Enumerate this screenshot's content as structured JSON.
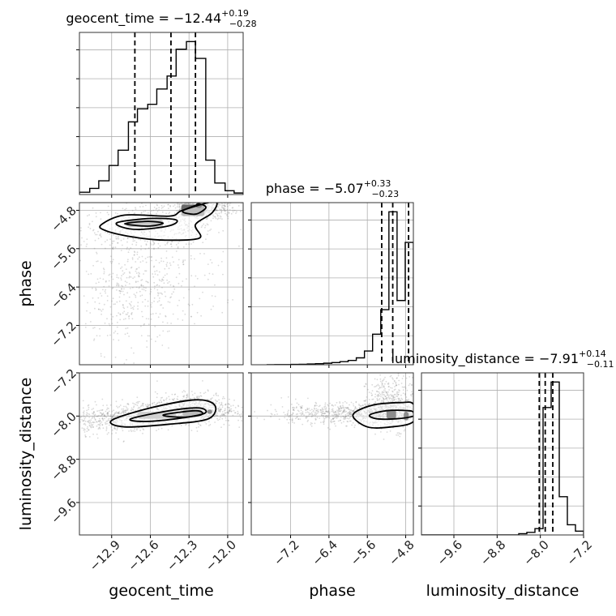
{
  "chart_data": {
    "type": "corner",
    "parameters": [
      "geocent_time",
      "phase",
      "luminosity_distance"
    ],
    "grid": true,
    "histograms": [
      {
        "parameter": "geocent_time",
        "title_prefix": "geocent_time = ",
        "median": "−12.44",
        "upper": "+0.19",
        "lower": "−0.28",
        "quantiles": [
          -12.72,
          -12.44,
          -12.25
        ],
        "bin_edges": [
          -13.15,
          -13.07,
          -13.0,
          -12.92,
          -12.85,
          -12.77,
          -12.7,
          -12.62,
          -12.55,
          -12.47,
          -12.4,
          -12.32,
          -12.25,
          -12.17,
          -12.1,
          -12.02,
          -11.95,
          -11.88
        ],
        "counts": [
          3,
          8,
          18,
          38,
          58,
          95,
          112,
          118,
          138,
          155,
          190,
          200,
          178,
          45,
          15,
          5,
          2
        ]
      },
      {
        "parameter": "phase",
        "title_prefix": "phase = ",
        "median": "−5.07",
        "upper": "+0.33",
        "lower": "−0.23",
        "quantiles": [
          -5.3,
          -5.07,
          -4.74
        ],
        "bin_edges": [
          -7.7,
          -7.53,
          -7.36,
          -7.19,
          -7.02,
          -6.85,
          -6.68,
          -6.51,
          -6.34,
          -6.17,
          -6.0,
          -5.83,
          -5.66,
          -5.49,
          -5.32,
          -5.15,
          -4.98,
          -4.81,
          -4.64
        ],
        "counts": [
          0,
          1,
          1,
          2,
          3,
          5,
          7,
          10,
          14,
          20,
          28,
          45,
          90,
          200,
          360,
          1000,
          420,
          800
        ]
      },
      {
        "parameter": "luminosity_distance",
        "title_prefix": "luminosity_distance = ",
        "median": "−7.91",
        "upper": "+0.14",
        "lower": "−0.11",
        "quantiles": [
          -8.02,
          -7.91,
          -7.77
        ],
        "bin_edges": [
          -10.2,
          -10.05,
          -9.9,
          -9.75,
          -9.6,
          -9.45,
          -9.3,
          -9.15,
          -9.0,
          -8.85,
          -8.7,
          -8.55,
          -8.4,
          -8.25,
          -8.1,
          -7.95,
          -7.8,
          -7.65,
          -7.5,
          -7.35,
          -7.2
        ],
        "counts": [
          0,
          0,
          0,
          0,
          0,
          0,
          0,
          0,
          0,
          0,
          0,
          0,
          1,
          2,
          5,
          100,
          120,
          30,
          8,
          3
        ]
      }
    ],
    "axes": {
      "geocent_time": {
        "range": [
          -13.15,
          -11.88
        ],
        "ticks": [
          -12.9,
          -12.6,
          -12.3,
          -12.0
        ],
        "tick_labels": [
          "−12.9",
          "−12.6",
          "−12.3",
          "−12.0"
        ],
        "label": "geocent_time"
      },
      "phase": {
        "range": [
          -8.02,
          -4.64
        ],
        "ticks": [
          -7.2,
          -6.4,
          -5.6,
          -4.8
        ],
        "tick_labels": [
          "−7.2",
          "−6.4",
          "−5.6",
          "−4.8"
        ],
        "label": "phase"
      },
      "luminosity_distance": {
        "range": [
          -10.2,
          -7.2
        ],
        "ticks": [
          -9.6,
          -8.8,
          -8.0,
          -7.2
        ],
        "tick_labels": [
          "−9.6",
          "−8.8",
          "−8.0",
          "−7.2"
        ],
        "label": "luminosity_distance"
      }
    },
    "contour_panels": [
      {
        "x": "geocent_time",
        "y": "phase",
        "cloud": [
          {
            "x": -12.62,
            "y": -5.15,
            "sx": 0.26,
            "sy": 0.2,
            "w": 0.28
          },
          {
            "x": -12.22,
            "y": -4.75,
            "sx": 0.15,
            "sy": 0.12,
            "w": 0.32
          },
          {
            "x": -12.6,
            "y": -6.1,
            "sx": 0.28,
            "sy": 0.6,
            "w": 0.25
          },
          {
            "x": -12.8,
            "y": -6.8,
            "sx": 0.2,
            "sy": 0.5,
            "w": 0.15
          }
        ],
        "contours": [
          [
            [
              -12.98,
              -5.1
            ],
            [
              -12.8,
              -4.9
            ],
            [
              -12.45,
              -4.92
            ],
            [
              -12.35,
              -4.8
            ],
            [
              -12.1,
              -4.62
            ],
            [
              -12.12,
              -4.85
            ],
            [
              -12.25,
              -5.1
            ],
            [
              -12.22,
              -5.38
            ],
            [
              -12.5,
              -5.42
            ],
            [
              -12.75,
              -5.35
            ],
            [
              -12.95,
              -5.22
            ]
          ],
          [
            [
              -12.85,
              -5.05
            ],
            [
              -12.6,
              -4.97
            ],
            [
              -12.4,
              -5.0
            ],
            [
              -12.45,
              -5.12
            ],
            [
              -12.68,
              -5.2
            ],
            [
              -12.82,
              -5.15
            ]
          ],
          [
            [
              -12.35,
              -4.82
            ],
            [
              -12.22,
              -4.68
            ],
            [
              -12.17,
              -4.75
            ],
            [
              -12.25,
              -4.88
            ]
          ],
          [
            [
              -12.8,
              -5.08
            ],
            [
              -12.62,
              -5.03
            ],
            [
              -12.5,
              -5.07
            ],
            [
              -12.62,
              -5.13
            ]
          ]
        ],
        "density_blocks": [
          {
            "x": [
              -12.78,
              -12.5
            ],
            "y": [
              -5.15,
              -5.0
            ],
            "shade": "#8a8a8a"
          },
          {
            "x": [
              -12.36,
              -12.18
            ],
            "y": [
              -4.92,
              -4.68
            ],
            "shade": "#6a6a6a"
          },
          {
            "x": [
              -12.25,
              -12.2
            ],
            "y": [
              -4.75,
              -4.65
            ],
            "shade": "#000000"
          }
        ]
      },
      {
        "x": "geocent_time",
        "y": "luminosity_distance",
        "cloud": [
          {
            "x": -12.55,
            "y": -7.95,
            "sx": 0.3,
            "sy": 0.12,
            "w": 0.45
          },
          {
            "x": -12.25,
            "y": -7.85,
            "sx": 0.15,
            "sy": 0.14,
            "w": 0.35
          },
          {
            "x": -12.9,
            "y": -8.1,
            "sx": 0.15,
            "sy": 0.12,
            "w": 0.2
          }
        ],
        "contours": [
          [
            [
              -12.9,
              -8.08
            ],
            [
              -12.6,
              -7.85
            ],
            [
              -12.25,
              -7.7
            ],
            [
              -12.1,
              -7.8
            ],
            [
              -12.15,
              -8.05
            ],
            [
              -12.45,
              -8.15
            ],
            [
              -12.8,
              -8.2
            ]
          ],
          [
            [
              -12.75,
              -8.05
            ],
            [
              -12.45,
              -7.9
            ],
            [
              -12.22,
              -7.85
            ],
            [
              -12.18,
              -7.95
            ],
            [
              -12.4,
              -8.05
            ],
            [
              -12.65,
              -8.1
            ]
          ],
          [
            [
              -12.5,
              -7.98
            ],
            [
              -12.25,
              -7.9
            ],
            [
              -12.2,
              -7.97
            ],
            [
              -12.35,
              -8.02
            ]
          ]
        ],
        "density_blocks": [
          {
            "x": [
              -12.7,
              -12.4
            ],
            "y": [
              -8.05,
              -7.92
            ],
            "shade": "#9a9a9a"
          },
          {
            "x": [
              -12.35,
              -12.2
            ],
            "y": [
              -8.0,
              -7.88
            ],
            "shade": "#6a6a6a"
          },
          {
            "x": [
              -12.16,
              -12.12
            ],
            "y": [
              -7.96,
              -7.88
            ],
            "shade": "#000000"
          }
        ]
      },
      {
        "x": "phase",
        "y": "luminosity_distance",
        "cloud": [
          {
            "x": -5.3,
            "y": -7.95,
            "sx": 0.5,
            "sy": 0.1,
            "w": 0.45
          },
          {
            "x": -5.1,
            "y": -7.75,
            "sx": 0.25,
            "sy": 0.25,
            "w": 0.3
          },
          {
            "x": -6.5,
            "y": -7.95,
            "sx": 0.6,
            "sy": 0.1,
            "w": 0.25
          }
        ],
        "contours": [
          [
            [
              -5.9,
              -7.98
            ],
            [
              -5.5,
              -7.8
            ],
            [
              -4.9,
              -7.75
            ],
            [
              -4.64,
              -7.78
            ],
            [
              -4.64,
              -8.1
            ],
            [
              -5.1,
              -8.2
            ],
            [
              -5.6,
              -8.2
            ]
          ],
          [
            [
              -5.55,
              -7.98
            ],
            [
              -5.2,
              -7.9
            ],
            [
              -4.75,
              -7.9
            ],
            [
              -4.64,
              -7.93
            ],
            [
              -4.64,
              -8.0
            ],
            [
              -5.0,
              -8.05
            ],
            [
              -5.4,
              -8.05
            ]
          ]
        ],
        "density_blocks": [
          {
            "x": [
              -5.2,
              -5.0
            ],
            "y": [
              -8.05,
              -7.88
            ],
            "shade": "#000000"
          },
          {
            "x": [
              -4.84,
              -4.74
            ],
            "y": [
              -8.08,
              -7.92
            ],
            "shade": "#000000"
          }
        ]
      }
    ]
  }
}
